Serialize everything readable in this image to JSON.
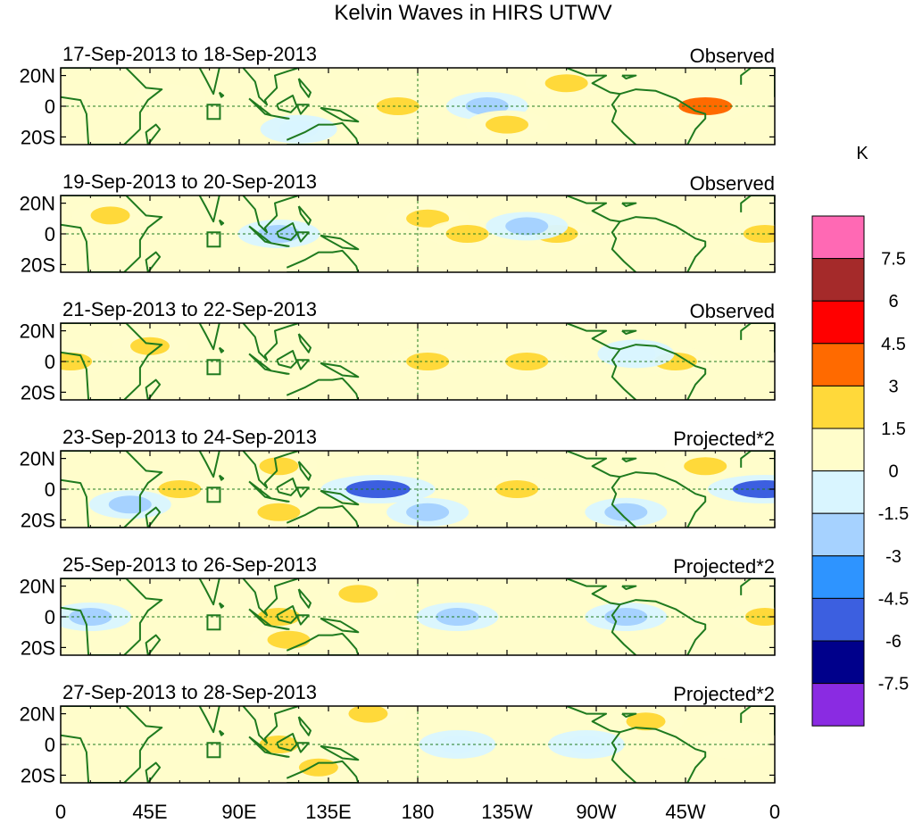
{
  "chart_data": {
    "type": "heatmap",
    "title": "Kelvin Waves in HIRS UTWV",
    "units": "K",
    "x_tick_labels": [
      "0",
      "45E",
      "90E",
      "135E",
      "180",
      "135W",
      "90W",
      "45W",
      "0"
    ],
    "y_tick_labels": [
      "20N",
      "0",
      "20S"
    ],
    "xlim_degrees_east": [
      0,
      360
    ],
    "ylim_latitude": [
      -25,
      25
    ],
    "colorbar": {
      "levels": [
        "7.5",
        "6",
        "4.5",
        "3",
        "1.5",
        "0",
        "-1.5",
        "-3",
        "-4.5",
        "-6",
        "-7.5"
      ],
      "colors": [
        "#ff69b4",
        "#a52a2a",
        "#ff0000",
        "#ff6a00",
        "#ffd93a",
        "#fffdcb",
        "#d9f5ff",
        "#a6d2ff",
        "#2e94ff",
        "#3c5fe0",
        "#00008b",
        "#8a2be2"
      ]
    },
    "panels": [
      {
        "date_range": "17-Sep-2013 to 18-Sep-2013",
        "label": "Observed",
        "anomalies": [
          {
            "lon": 170,
            "lat": 0,
            "value": 2
          },
          {
            "lon": 215,
            "lat": 0,
            "value": -2
          },
          {
            "lon": 225,
            "lat": -12,
            "value": 2
          },
          {
            "lon": 255,
            "lat": 15,
            "value": 2
          },
          {
            "lon": 325,
            "lat": 0,
            "value": 3.5
          },
          {
            "lon": 55,
            "lat": 5,
            "value": 1
          },
          {
            "lon": 120,
            "lat": -15,
            "value": -1.5
          }
        ]
      },
      {
        "date_range": "19-Sep-2013 to 20-Sep-2013",
        "label": "Observed",
        "anomalies": [
          {
            "lon": 185,
            "lat": 10,
            "value": 2
          },
          {
            "lon": 205,
            "lat": 0,
            "value": 2
          },
          {
            "lon": 250,
            "lat": 0,
            "value": 2
          },
          {
            "lon": 235,
            "lat": 5,
            "value": -2
          },
          {
            "lon": 355,
            "lat": 0,
            "value": 2
          },
          {
            "lon": 25,
            "lat": 12,
            "value": 1.5
          },
          {
            "lon": 110,
            "lat": 0,
            "value": -2
          }
        ]
      },
      {
        "date_range": "21-Sep-2013 to 22-Sep-2013",
        "label": "Observed",
        "anomalies": [
          {
            "lon": 185,
            "lat": 0,
            "value": 2
          },
          {
            "lon": 235,
            "lat": 0,
            "value": 2
          },
          {
            "lon": 310,
            "lat": 0,
            "value": 2
          },
          {
            "lon": 5,
            "lat": 0,
            "value": 2
          },
          {
            "lon": 45,
            "lat": 10,
            "value": 1.5
          },
          {
            "lon": 290,
            "lat": 5,
            "value": -1.5
          }
        ]
      },
      {
        "date_range": "23-Sep-2013 to 24-Sep-2013",
        "label": "Projected*2",
        "anomalies": [
          {
            "lon": 160,
            "lat": 0,
            "value": -5
          },
          {
            "lon": 355,
            "lat": 0,
            "value": -5
          },
          {
            "lon": 230,
            "lat": 0,
            "value": 2
          },
          {
            "lon": 60,
            "lat": 0,
            "value": 2
          },
          {
            "lon": 110,
            "lat": -15,
            "value": 2
          },
          {
            "lon": 110,
            "lat": 15,
            "value": 1.5
          },
          {
            "lon": 325,
            "lat": 15,
            "value": 2
          },
          {
            "lon": 185,
            "lat": -15,
            "value": -2
          },
          {
            "lon": 285,
            "lat": -15,
            "value": -2
          },
          {
            "lon": 35,
            "lat": -10,
            "value": -2
          }
        ]
      },
      {
        "date_range": "25-Sep-2013 to 26-Sep-2013",
        "label": "Projected*2",
        "anomalies": [
          {
            "lon": 200,
            "lat": 0,
            "value": -2
          },
          {
            "lon": 285,
            "lat": 0,
            "value": -2
          },
          {
            "lon": 115,
            "lat": -15,
            "value": 2
          },
          {
            "lon": 110,
            "lat": 0,
            "value": 2
          },
          {
            "lon": 150,
            "lat": 15,
            "value": 1.5
          },
          {
            "lon": 15,
            "lat": 0,
            "value": -2
          },
          {
            "lon": 355,
            "lat": 0,
            "value": 1.5
          }
        ]
      },
      {
        "date_range": "27-Sep-2013 to 28-Sep-2013",
        "label": "Projected*2",
        "anomalies": [
          {
            "lon": 200,
            "lat": 0,
            "value": -1.5
          },
          {
            "lon": 265,
            "lat": 0,
            "value": -1.5
          },
          {
            "lon": 130,
            "lat": -15,
            "value": 1.5
          },
          {
            "lon": 155,
            "lat": 20,
            "value": 1.5
          },
          {
            "lon": 295,
            "lat": 15,
            "value": 1.5
          },
          {
            "lon": 110,
            "lat": 0,
            "value": 1.5
          },
          {
            "lon": 340,
            "lat": 0,
            "value": 1
          }
        ]
      }
    ]
  }
}
